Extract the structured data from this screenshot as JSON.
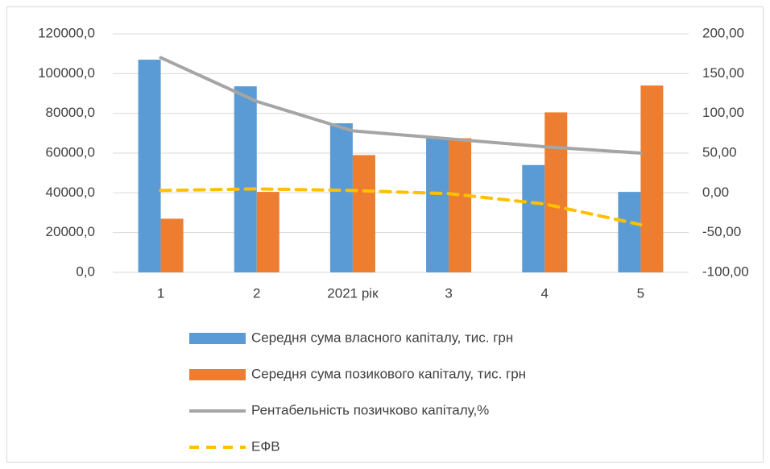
{
  "chart_data": {
    "type": "bar",
    "categories": [
      "1",
      "2",
      "2021 рік",
      "3",
      "4",
      "5"
    ],
    "series": [
      {
        "name": "Середня сума власного капіталу, тис. грн",
        "type": "bar",
        "color": "#5b9bd5",
        "values": [
          107000,
          93600,
          75000,
          68000,
          54000,
          40500
        ]
      },
      {
        "name": "Середня сума позикового капіталу, тис. грн",
        "type": "bar",
        "color": "#ed7d31",
        "values": [
          27000,
          40500,
          59000,
          67500,
          80500,
          94000
        ]
      },
      {
        "name": "Рентабельність позичково капіталу,%",
        "type": "line",
        "color": "#a5a5a5",
        "axis": "y2",
        "values": [
          170,
          115,
          78,
          68,
          58,
          50
        ]
      },
      {
        "name": "ЕФВ",
        "type": "line",
        "dashed": true,
        "color": "#ffc000",
        "axis": "y2",
        "values": [
          3,
          5,
          3,
          -1,
          -14,
          -40
        ]
      }
    ],
    "ylim": [
      0,
      120000
    ],
    "yticks": [
      {
        "value": 0,
        "label": "0,0"
      },
      {
        "value": 20000,
        "label": "20000,0"
      },
      {
        "value": 40000,
        "label": "40000,0"
      },
      {
        "value": 60000,
        "label": "60000,0"
      },
      {
        "value": 80000,
        "label": "80000,0"
      },
      {
        "value": 100000,
        "label": "100000,0"
      },
      {
        "value": 120000,
        "label": "120000,0"
      }
    ],
    "y2lim": [
      -100,
      200
    ],
    "y2ticks": [
      {
        "value": -100,
        "label": "-100,00"
      },
      {
        "value": -50,
        "label": "-50,00"
      },
      {
        "value": 0,
        "label": "0,00"
      },
      {
        "value": 50,
        "label": "50,00"
      },
      {
        "value": 100,
        "label": "100,00"
      },
      {
        "value": 150,
        "label": "150,00"
      },
      {
        "value": 200,
        "label": "200,00"
      }
    ],
    "grid": true,
    "legend": "bottom"
  }
}
